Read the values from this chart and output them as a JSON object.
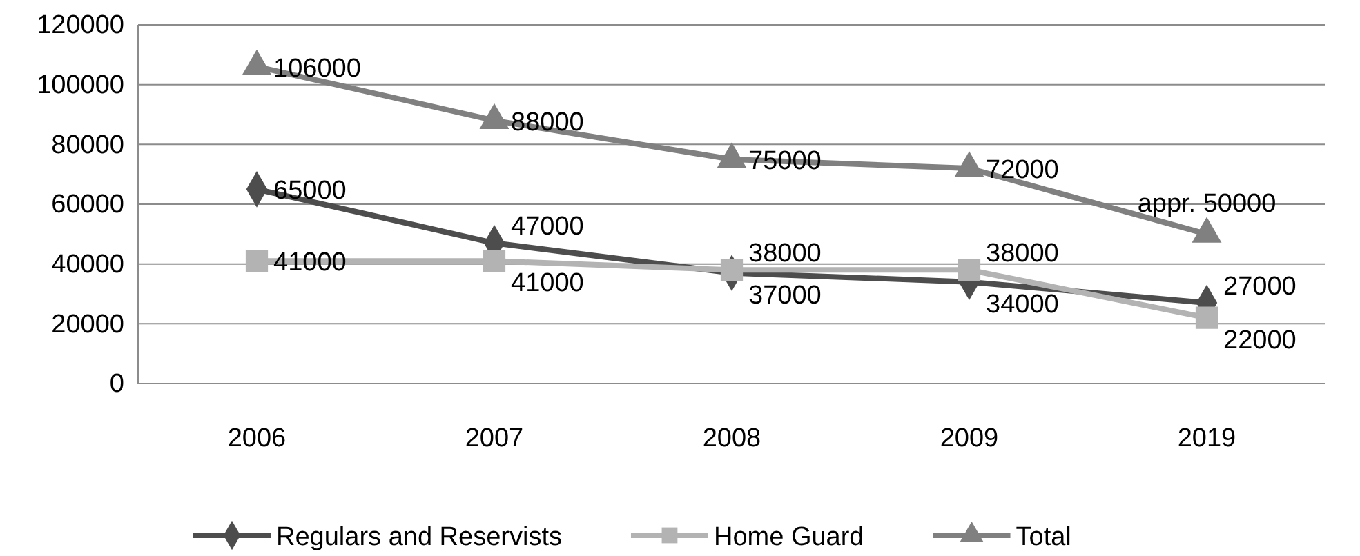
{
  "chart_data": {
    "type": "line",
    "categories": [
      "2006",
      "2007",
      "2008",
      "2009",
      "2019"
    ],
    "ylim": [
      0,
      120000
    ],
    "yticks": [
      0,
      20000,
      40000,
      60000,
      80000,
      100000,
      120000
    ],
    "grid": "y",
    "legend": "bottom",
    "series": [
      {
        "name": "Regulars and Reservists",
        "color": "#4d4d4d",
        "marker": "diamond",
        "values": [
          65000,
          47000,
          37000,
          34000,
          27000
        ],
        "value_labels": [
          "65000",
          "47000",
          "37000",
          "34000",
          "27000"
        ]
      },
      {
        "name": "Home Guard",
        "color": "#b3b3b3",
        "marker": "square",
        "values": [
          41000,
          41000,
          38000,
          38000,
          22000
        ],
        "value_labels": [
          "41000",
          "41000",
          "38000",
          "38000",
          "22000"
        ]
      },
      {
        "name": "Total",
        "color": "#808080",
        "marker": "triangle",
        "values": [
          106000,
          88000,
          75000,
          72000,
          50000
        ],
        "value_labels": [
          "106000",
          "88000",
          "75000",
          "72000",
          "appr. 50000"
        ]
      }
    ]
  }
}
